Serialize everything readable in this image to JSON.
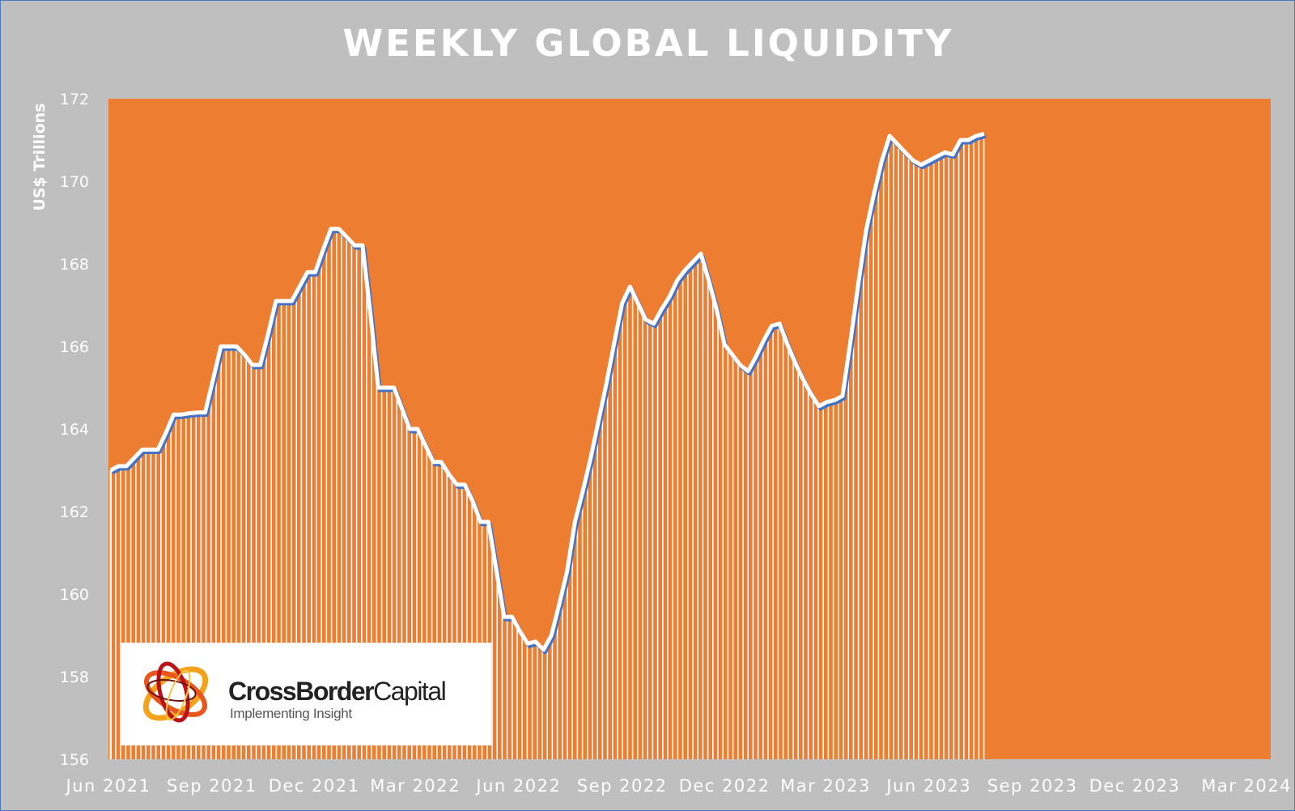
{
  "colors": {
    "background": "#bfbfbf",
    "plot_area": "#ed7d31",
    "line": "#ffffff",
    "line_shadow": "#4472c4",
    "text": "#ffffff"
  },
  "logo": {
    "name_bold": "CrossBorder",
    "name_regular": "Capital",
    "tagline": "Implementing Insight"
  },
  "chart_data": {
    "type": "area",
    "title": "WEEKLY GLOBAL LIQUIDITY",
    "ylabel": "US$ Trillions",
    "xlabel": "",
    "ylim": [
      156,
      172
    ],
    "xlim": [
      "2021-06-01",
      "2024-03-31"
    ],
    "yticks": [
      156,
      158,
      160,
      162,
      164,
      166,
      168,
      170,
      172
    ],
    "xticks": [
      {
        "date": "2021-06-01",
        "label": "Jun 2021"
      },
      {
        "date": "2021-09-01",
        "label": "Sep 2021"
      },
      {
        "date": "2021-12-01",
        "label": "Dec 2021"
      },
      {
        "date": "2022-03-01",
        "label": "Mar 2022"
      },
      {
        "date": "2022-06-01",
        "label": "Jun 2022"
      },
      {
        "date": "2022-09-01",
        "label": "Sep 2022"
      },
      {
        "date": "2022-12-01",
        "label": "Dec 2022"
      },
      {
        "date": "2023-03-01",
        "label": "Mar 2023"
      },
      {
        "date": "2023-06-01",
        "label": "Jun 2023"
      },
      {
        "date": "2023-09-01",
        "label": "Sep 2023"
      },
      {
        "date": "2023-12-01",
        "label": "Dec 2023"
      },
      {
        "date": "2024-03-01",
        "label": "Mar 2024"
      }
    ],
    "grid": false,
    "legend": "none",
    "series": [
      {
        "points": [
          [
            "2021-06-03",
            163.0
          ],
          [
            "2021-06-10",
            163.1
          ],
          [
            "2021-06-17",
            163.1
          ],
          [
            "2021-06-24",
            163.3
          ],
          [
            "2021-07-01",
            163.5
          ],
          [
            "2021-07-08",
            163.5
          ],
          [
            "2021-07-15",
            163.5
          ],
          [
            "2021-07-22",
            163.9
          ],
          [
            "2021-07-29",
            164.35
          ],
          [
            "2021-08-05",
            164.35
          ],
          [
            "2021-08-12",
            164.38
          ],
          [
            "2021-08-19",
            164.4
          ],
          [
            "2021-08-26",
            164.4
          ],
          [
            "2021-09-02",
            165.2
          ],
          [
            "2021-09-09",
            166.0
          ],
          [
            "2021-09-16",
            166.0
          ],
          [
            "2021-09-23",
            166.0
          ],
          [
            "2021-09-30",
            165.8
          ],
          [
            "2021-10-07",
            165.55
          ],
          [
            "2021-10-14",
            165.55
          ],
          [
            "2021-10-21",
            166.3
          ],
          [
            "2021-10-28",
            167.1
          ],
          [
            "2021-11-04",
            167.1
          ],
          [
            "2021-11-11",
            167.1
          ],
          [
            "2021-11-18",
            167.45
          ],
          [
            "2021-11-25",
            167.8
          ],
          [
            "2021-12-02",
            167.8
          ],
          [
            "2021-12-09",
            168.35
          ],
          [
            "2021-12-16",
            168.85
          ],
          [
            "2021-12-23",
            168.85
          ],
          [
            "2021-12-30",
            168.65
          ],
          [
            "2022-01-06",
            168.45
          ],
          [
            "2022-01-13",
            168.45
          ],
          [
            "2022-01-20",
            166.8
          ],
          [
            "2022-01-27",
            165.0
          ],
          [
            "2022-02-03",
            165.0
          ],
          [
            "2022-02-10",
            165.0
          ],
          [
            "2022-02-17",
            164.5
          ],
          [
            "2022-02-24",
            164.0
          ],
          [
            "2022-03-03",
            164.0
          ],
          [
            "2022-03-10",
            163.6
          ],
          [
            "2022-03-17",
            163.2
          ],
          [
            "2022-03-24",
            163.2
          ],
          [
            "2022-03-31",
            162.9
          ],
          [
            "2022-04-07",
            162.65
          ],
          [
            "2022-04-14",
            162.65
          ],
          [
            "2022-04-21",
            162.25
          ],
          [
            "2022-04-28",
            161.75
          ],
          [
            "2022-05-05",
            161.75
          ],
          [
            "2022-05-12",
            160.6
          ],
          [
            "2022-05-19",
            159.45
          ],
          [
            "2022-05-26",
            159.45
          ],
          [
            "2022-06-02",
            159.1
          ],
          [
            "2022-06-09",
            158.8
          ],
          [
            "2022-06-16",
            158.85
          ],
          [
            "2022-06-23",
            158.65
          ],
          [
            "2022-06-30",
            159.0
          ],
          [
            "2022-07-07",
            159.75
          ],
          [
            "2022-07-14",
            160.55
          ],
          [
            "2022-07-21",
            161.75
          ],
          [
            "2022-07-28",
            162.5
          ],
          [
            "2022-08-04",
            163.3
          ],
          [
            "2022-08-11",
            164.2
          ],
          [
            "2022-08-18",
            165.1
          ],
          [
            "2022-08-25",
            166.1
          ],
          [
            "2022-09-01",
            167.05
          ],
          [
            "2022-09-08",
            167.45
          ],
          [
            "2022-09-15",
            167.05
          ],
          [
            "2022-09-22",
            166.65
          ],
          [
            "2022-09-29",
            166.55
          ],
          [
            "2022-10-06",
            166.9
          ],
          [
            "2022-10-13",
            167.2
          ],
          [
            "2022-10-20",
            167.6
          ],
          [
            "2022-10-27",
            167.85
          ],
          [
            "2022-11-03",
            168.05
          ],
          [
            "2022-11-10",
            168.25
          ],
          [
            "2022-11-17",
            167.6
          ],
          [
            "2022-11-24",
            166.9
          ],
          [
            "2022-12-01",
            166.05
          ],
          [
            "2022-12-08",
            165.8
          ],
          [
            "2022-12-15",
            165.55
          ],
          [
            "2022-12-22",
            165.4
          ],
          [
            "2022-12-29",
            165.75
          ],
          [
            "2023-01-05",
            166.15
          ],
          [
            "2023-01-12",
            166.5
          ],
          [
            "2023-01-19",
            166.55
          ],
          [
            "2023-01-26",
            166.05
          ],
          [
            "2023-02-02",
            165.6
          ],
          [
            "2023-02-09",
            165.2
          ],
          [
            "2023-02-16",
            164.85
          ],
          [
            "2023-02-23",
            164.55
          ],
          [
            "2023-03-02",
            164.65
          ],
          [
            "2023-03-09",
            164.7
          ],
          [
            "2023-03-16",
            164.8
          ],
          [
            "2023-03-23",
            166.1
          ],
          [
            "2023-03-30",
            167.5
          ],
          [
            "2023-04-06",
            168.8
          ],
          [
            "2023-04-13",
            169.7
          ],
          [
            "2023-04-20",
            170.5
          ],
          [
            "2023-04-27",
            171.1
          ],
          [
            "2023-05-04",
            170.9
          ],
          [
            "2023-05-11",
            170.7
          ],
          [
            "2023-05-18",
            170.5
          ],
          [
            "2023-05-25",
            170.4
          ],
          [
            "2023-06-01",
            170.5
          ],
          [
            "2023-06-08",
            170.6
          ],
          [
            "2023-06-15",
            170.7
          ],
          [
            "2023-06-22",
            170.65
          ],
          [
            "2023-06-29",
            171.0
          ],
          [
            "2023-07-06",
            171.0
          ],
          [
            "2023-07-13",
            171.1
          ],
          [
            "2023-07-20",
            171.15
          ]
        ]
      }
    ]
  }
}
